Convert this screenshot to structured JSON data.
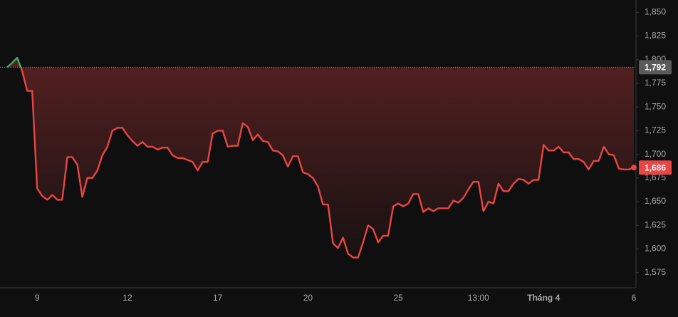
{
  "chart_data": {
    "type": "line",
    "categories": [
      null,
      null,
      null,
      null,
      null,
      null,
      "9",
      null,
      null,
      null,
      null,
      null,
      null,
      null,
      null,
      null,
      null,
      null,
      null,
      null,
      null,
      null,
      null,
      null,
      "12",
      null,
      null,
      null,
      null,
      null,
      null,
      null,
      null,
      null,
      null,
      null,
      null,
      null,
      null,
      null,
      null,
      null,
      "17",
      null,
      null,
      null,
      null,
      null,
      null,
      null,
      null,
      null,
      null,
      null,
      null,
      null,
      null,
      null,
      null,
      null,
      "20",
      null,
      null,
      null,
      null,
      null,
      null,
      null,
      null,
      null,
      null,
      null,
      null,
      null,
      null,
      null,
      null,
      null,
      "25",
      null,
      null,
      null,
      null,
      null,
      null,
      null,
      null,
      null,
      null,
      null,
      null,
      null,
      null,
      null,
      "13:00",
      null,
      null,
      null,
      null,
      null,
      null,
      null,
      null,
      null,
      null,
      null,
      null,
      "Tháng 4",
      null,
      null,
      null,
      null,
      null,
      null,
      null,
      null,
      null,
      null,
      null,
      null,
      null,
      null,
      null,
      null,
      null,
      "6"
    ],
    "values": [
      1792,
      1796.5,
      1802,
      1788,
      1767,
      1767,
      1664,
      1656,
      1652,
      1657,
      1652,
      1652,
      1697,
      1697,
      1689,
      1655,
      1675,
      1675,
      1683,
      1699,
      1708,
      1725,
      1728,
      1728,
      1720,
      1714,
      1709,
      1713,
      1708,
      1708,
      1705,
      1707,
      1707,
      1699,
      1696,
      1696,
      1694,
      1692,
      1683,
      1692,
      1692,
      1722,
      1725,
      1725,
      1708,
      1709,
      1709,
      1733,
      1729,
      1715,
      1721,
      1714,
      1713,
      1704,
      1703,
      1699,
      1687,
      1698,
      1698,
      1681,
      1679,
      1675,
      1666,
      1647,
      1647,
      1606,
      1601,
      1612,
      1595,
      1591,
      1591,
      1607,
      1625,
      1621,
      1607,
      1614,
      1614,
      1645,
      1648,
      1645,
      1648,
      1658,
      1658,
      1639,
      1643,
      1640,
      1643,
      1643,
      1643,
      1651,
      1649,
      1654,
      1663,
      1671,
      1671,
      1640,
      1650,
      1648,
      1669,
      1661,
      1661,
      1669,
      1674,
      1673,
      1669,
      1673,
      1673,
      1710,
      1704,
      1704,
      1708,
      1702,
      1702,
      1695,
      1695,
      1692,
      1684,
      1693,
      1693,
      1708,
      1700,
      1699,
      1685,
      1684,
      1684,
      1686
    ],
    "color": "#e84545",
    "up_color": "#2fb36b",
    "ylim": [
      1559,
      1863
    ],
    "yticks": [
      {
        "value": 1575,
        "label": "1,575"
      },
      {
        "value": 1600,
        "label": "1,600"
      },
      {
        "value": 1625,
        "label": "1,625"
      },
      {
        "value": 1650,
        "label": "1,650"
      },
      {
        "value": 1675,
        "label": "1,675"
      },
      {
        "value": 1700,
        "label": "1,700"
      },
      {
        "value": 1725,
        "label": "1,725"
      },
      {
        "value": 1750,
        "label": "1,750"
      },
      {
        "value": 1775,
        "label": "1,775"
      },
      {
        "value": 1800,
        "label": "1,800"
      },
      {
        "value": 1825,
        "label": "1,825"
      },
      {
        "value": 1850,
        "label": "1,850"
      }
    ],
    "reference_line": {
      "value": 1792,
      "label": "1,792"
    },
    "last_label": {
      "value": 1686,
      "label": "1,686"
    },
    "grid": false
  }
}
